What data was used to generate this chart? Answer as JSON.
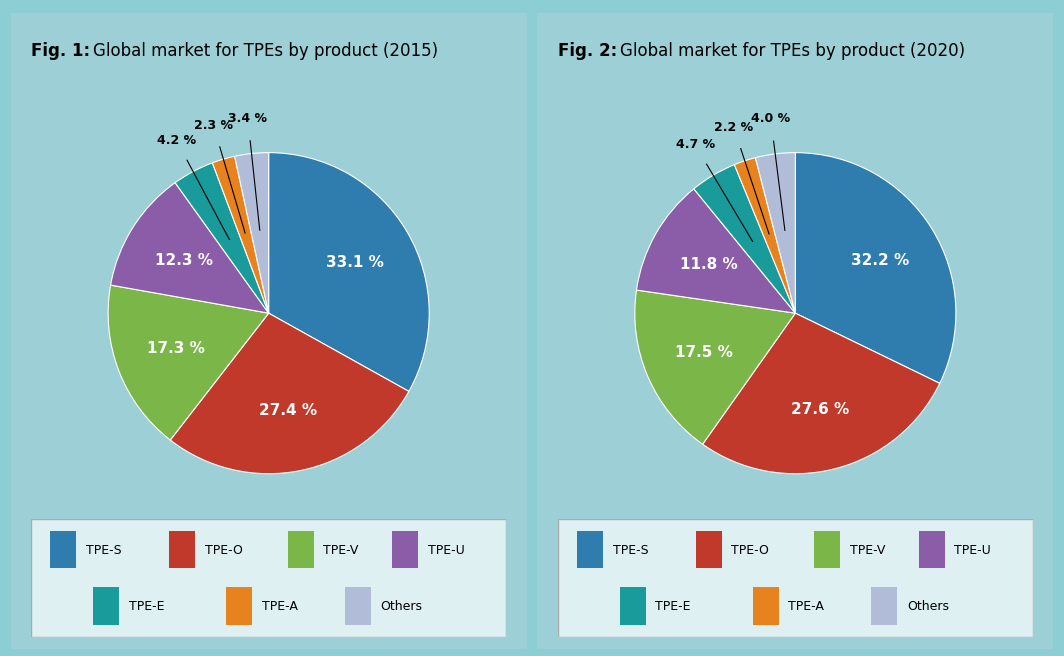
{
  "fig1_title": "Global market for TPEs by product (2015)",
  "fig1_label": "Fig. 1:",
  "fig2_title": "Global market for TPEs by product (2020)",
  "fig2_label": "Fig. 2:",
  "categories": [
    "TPE-S",
    "TPE-O",
    "TPE-V",
    "TPE-U",
    "TPE-E",
    "TPE-A",
    "Others"
  ],
  "colors": [
    "#2e7dae",
    "#c0392b",
    "#7ab648",
    "#8b5ca8",
    "#1a9b9b",
    "#e8821e",
    "#b0bcd8"
  ],
  "fig1_values": [
    33.1,
    27.4,
    17.3,
    12.3,
    4.2,
    2.3,
    3.4
  ],
  "fig2_values": [
    32.2,
    27.6,
    17.5,
    11.8,
    4.7,
    2.2,
    4.0
  ],
  "bg_color": "#8dcdd4",
  "panel_bg": "#9dcfd6",
  "legend_bg": "#dff0f2",
  "title_fontsize": 12,
  "label_fontsize": 10,
  "pie_label_fontsize_large": 11,
  "pie_label_fontsize_small": 9
}
